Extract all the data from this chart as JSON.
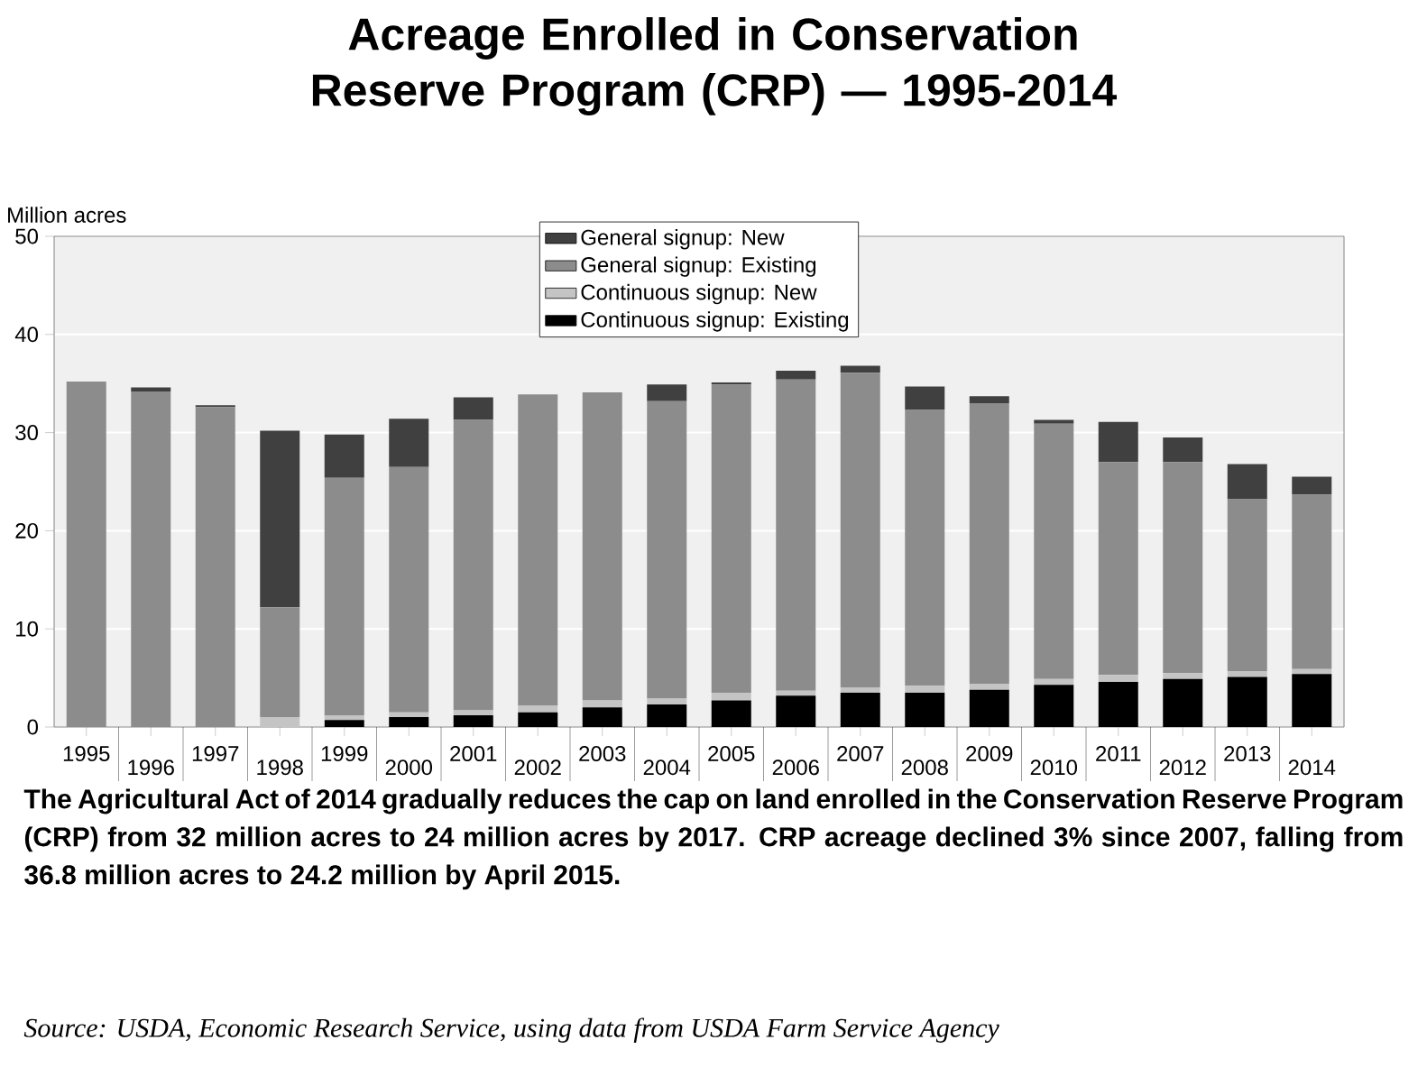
{
  "chart_data": {
    "type": "bar",
    "stacked": true,
    "title": "Acreage Enrolled in Conservation Reserve Program (CRP) — 1995-2014",
    "ylabel": "Million acres",
    "categories": [
      "1995",
      "1996",
      "1997",
      "1998",
      "1999",
      "2000",
      "2001",
      "2002",
      "2003",
      "2004",
      "2005",
      "2006",
      "2007",
      "2008",
      "2009",
      "2010",
      "2011",
      "2012",
      "2013",
      "2014"
    ],
    "series": [
      {
        "name": "Continuous signup: Existing",
        "color": "#000000",
        "values": [
          0,
          0,
          0,
          0,
          0.7,
          1.0,
          1.2,
          1.5,
          2.0,
          2.3,
          2.7,
          3.2,
          3.5,
          3.5,
          3.8,
          4.3,
          4.6,
          4.9,
          5.1,
          5.4
        ]
      },
      {
        "name": "Continuous signup: New",
        "color": "#c4c4c4",
        "values": [
          0,
          0,
          0,
          1.0,
          0.5,
          0.5,
          0.5,
          0.7,
          0.7,
          0.6,
          0.8,
          0.5,
          0.5,
          0.7,
          0.6,
          0.6,
          0.7,
          0.6,
          0.6,
          0.5
        ]
      },
      {
        "name": "General signup: Existing",
        "color": "#8c8c8c",
        "values": [
          35.2,
          34.2,
          32.6,
          11.2,
          24.2,
          25.0,
          29.6,
          31.7,
          31.4,
          30.3,
          31.4,
          31.7,
          32.1,
          28.1,
          28.6,
          26.0,
          21.7,
          21.5,
          17.5,
          17.8
        ]
      },
      {
        "name": "General signup: New",
        "color": "#404040",
        "values": [
          0,
          0.4,
          0.2,
          18.0,
          4.4,
          4.9,
          2.3,
          0,
          0,
          1.7,
          0.2,
          0.9,
          0.7,
          2.4,
          0.7,
          0.4,
          4.1,
          2.5,
          3.6,
          1.8
        ]
      }
    ],
    "ylim": [
      0,
      50
    ],
    "yticks": [
      0,
      10,
      20,
      30,
      40,
      50
    ],
    "grid": "y",
    "legend": "top",
    "annotations": [
      "**The Agricultural Act of 2014 gradually reduces the cap on land enrolled in the Conservation Reserve Program (CRP) from 32 million acres to 24 million acres by 2017. CRP acreage declined 3% since 2007, falling from 36.8 million acres to 24.2 million by April 2015.**",
      "*Source: USDA, Economic Research Service, using data from USDA Farm Service Agency*"
    ]
  }
}
